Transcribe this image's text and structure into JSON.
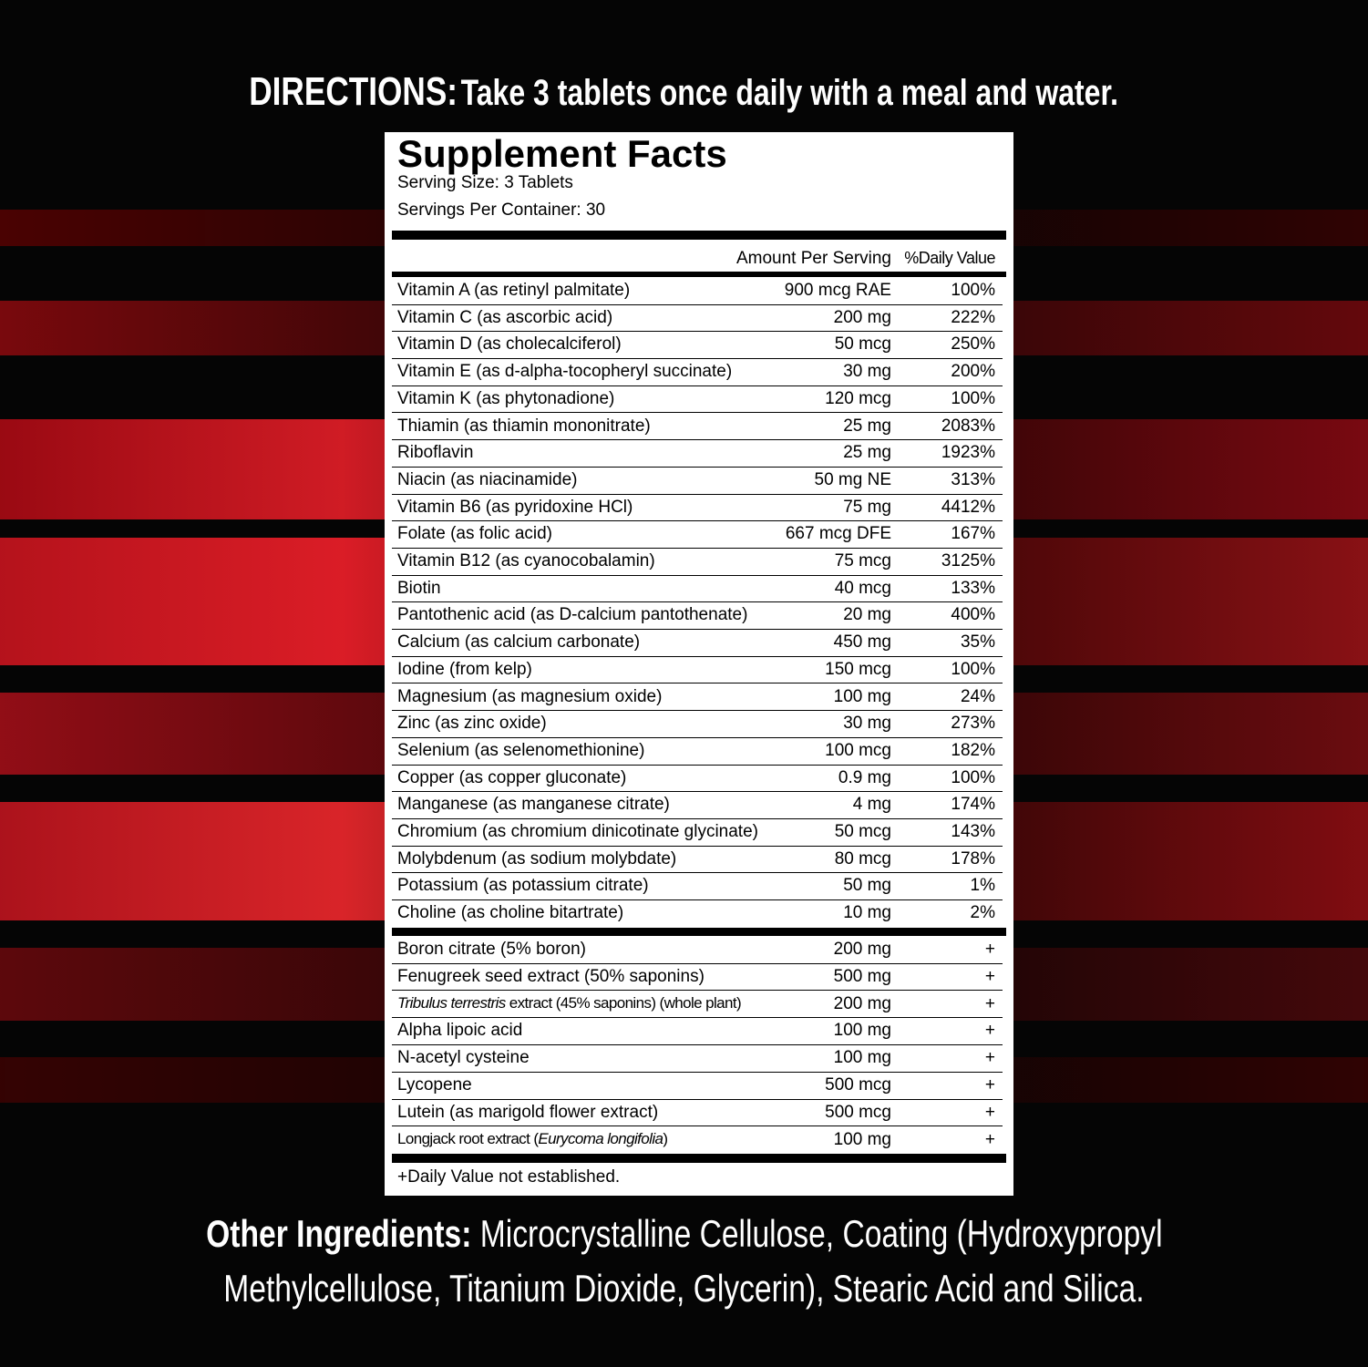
{
  "directions": {
    "label": "DIRECTIONS:",
    "text": "Take 3 tablets once daily with a meal and water."
  },
  "facts": {
    "title": "Supplement Facts",
    "serving_size": "Serving Size: 3 Tablets",
    "servings_per_container": "Servings Per Container: 30",
    "header": {
      "amount": "Amount Per Serving",
      "daily_value": "%Daily Value"
    },
    "rows": [
      {
        "name": "Vitamin A (as retinyl palmitate)",
        "amount": "900 mcg RAE",
        "daily_value": "100%"
      },
      {
        "name": "Vitamin C (as ascorbic acid)",
        "amount": "200 mg",
        "daily_value": "222%"
      },
      {
        "name": "Vitamin D (as cholecalciferol)",
        "amount": "50 mcg",
        "daily_value": "250%"
      },
      {
        "name": "Vitamin E (as d-alpha-tocopheryl succinate)",
        "amount": "30 mg",
        "daily_value": "200%"
      },
      {
        "name": "Vitamin K (as phytonadione)",
        "amount": "120 mcg",
        "daily_value": "100%"
      },
      {
        "name": "Thiamin (as thiamin mononitrate)",
        "amount": "25 mg",
        "daily_value": "2083%"
      },
      {
        "name": "Riboflavin",
        "amount": "25 mg",
        "daily_value": "1923%"
      },
      {
        "name": "Niacin (as niacinamide)",
        "amount": "50 mg NE",
        "daily_value": "313%"
      },
      {
        "name": "Vitamin B6 (as pyridoxine HCl)",
        "amount": "75 mg",
        "daily_value": "4412%"
      },
      {
        "name": "Folate (as folic acid)",
        "amount": "667 mcg DFE",
        "daily_value": "167%"
      },
      {
        "name": "Vitamin B12 (as cyanocobalamin)",
        "amount": "75 mcg",
        "daily_value": "3125%"
      },
      {
        "name": "Biotin",
        "amount": "40 mcg",
        "daily_value": "133%"
      },
      {
        "name": "Pantothenic acid (as D-calcium pantothenate)",
        "amount": "20 mg",
        "daily_value": "400%"
      },
      {
        "name": "Calcium (as calcium carbonate)",
        "amount": "450 mg",
        "daily_value": "35%"
      },
      {
        "name": "Iodine (from kelp)",
        "amount": "150 mcg",
        "daily_value": "100%"
      },
      {
        "name": "Magnesium (as magnesium oxide)",
        "amount": "100 mg",
        "daily_value": "24%"
      },
      {
        "name": "Zinc (as zinc oxide)",
        "amount": "30 mg",
        "daily_value": "273%"
      },
      {
        "name": "Selenium (as selenomethionine)",
        "amount": "100 mcg",
        "daily_value": "182%"
      },
      {
        "name": "Copper (as copper gluconate)",
        "amount": "0.9 mg",
        "daily_value": "100%"
      },
      {
        "name": "Manganese (as manganese citrate)",
        "amount": "4 mg",
        "daily_value": "174%"
      },
      {
        "name": "Chromium (as chromium dinicotinate glycinate)",
        "amount": "50 mcg",
        "daily_value": "143%"
      },
      {
        "name": "Molybdenum (as sodium molybdate)",
        "amount": "80 mcg",
        "daily_value": "178%"
      },
      {
        "name": "Potassium (as potassium citrate)",
        "amount": "50 mg",
        "daily_value": "1%"
      },
      {
        "name": "Choline (as choline bitartrate)",
        "amount": "10 mg",
        "daily_value": "2%"
      }
    ],
    "other_rows": [
      {
        "name": "Boron citrate (5% boron)",
        "amount": "200 mg",
        "daily_value": "+"
      },
      {
        "name": "Fenugreek seed extract (50% saponins)",
        "amount": "500 mg",
        "daily_value": "+"
      },
      {
        "name": [
          {
            "text": "Tribulus terrestris",
            "style": "italic"
          },
          {
            "text": " extract (45% saponins) (whole plant)",
            "style": "normal"
          }
        ],
        "amount": "200 mg",
        "daily_value": "+"
      },
      {
        "name": "Alpha lipoic acid",
        "amount": "100 mg",
        "daily_value": "+"
      },
      {
        "name": "N-acetyl cysteine",
        "amount": "100 mg",
        "daily_value": "+"
      },
      {
        "name": "Lycopene",
        "amount": "500 mcg",
        "daily_value": "+"
      },
      {
        "name": "Lutein (as marigold flower extract)",
        "amount": "500 mcg",
        "daily_value": "+"
      },
      {
        "name": [
          {
            "text": "Longjack root extract (",
            "style": "normal"
          },
          {
            "text": "Eurycoma longifolia",
            "style": "italic"
          },
          {
            "text": ")",
            "style": "normal"
          }
        ],
        "amount": "100 mg",
        "daily_value": "+"
      }
    ],
    "footnote": "+Daily Value not established."
  },
  "other_ingredients": {
    "label": "Other Ingredients:",
    "lines": [
      "Microcrystalline Cellulose, Coating (Hydroxypropyl",
      "Methylcellulose, Titanium Dioxide, Glycerin), Stearic Acid and Silica."
    ]
  }
}
